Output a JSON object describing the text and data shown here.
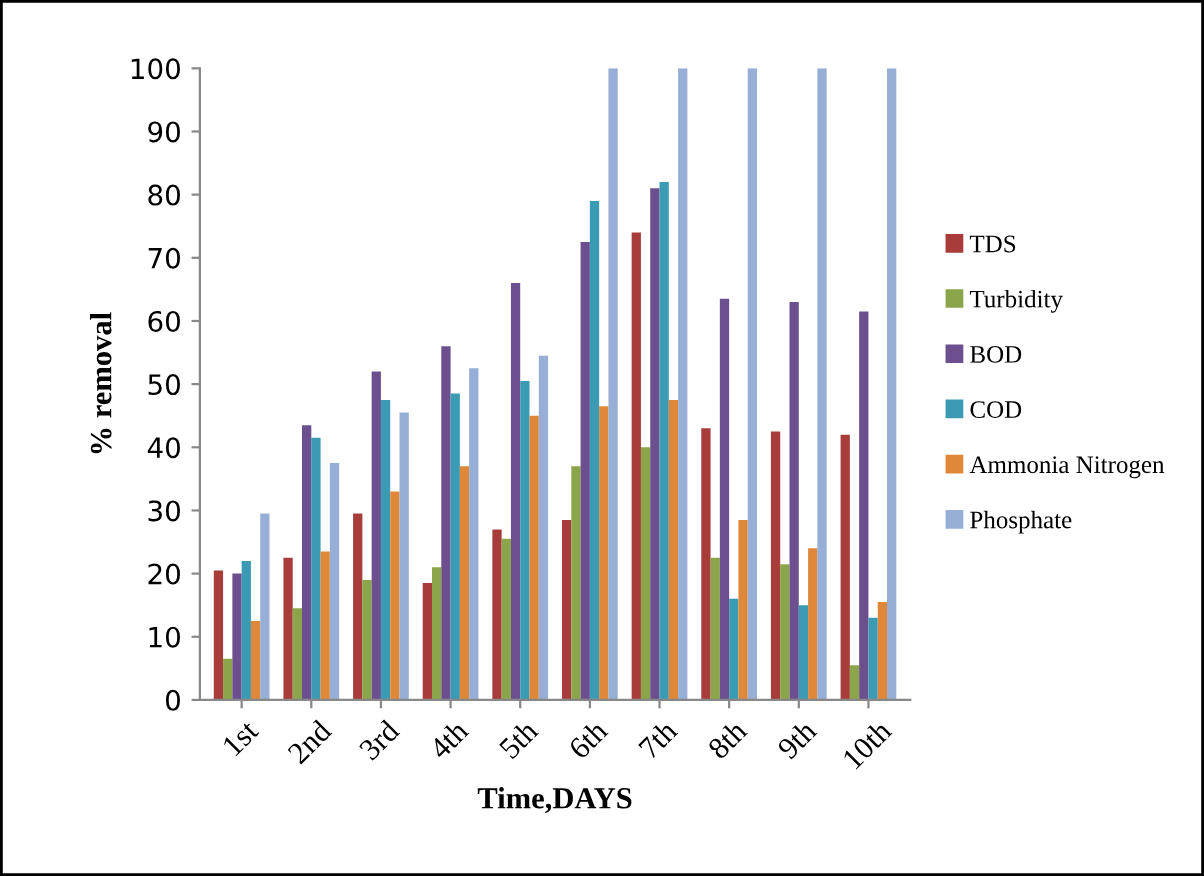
{
  "chart_data": {
    "type": "bar",
    "xlabel": "Time,DAYS",
    "ylabel": "% removal",
    "categories": [
      "1st",
      "2nd",
      "3rd",
      "4th",
      "5th",
      "6th",
      "7th",
      "8th",
      "9th",
      "10th"
    ],
    "series": [
      {
        "name": "TDS",
        "color": "#a83c3a",
        "values": [
          20.5,
          22.5,
          29.5,
          18.5,
          27,
          28.5,
          74,
          43,
          42.5,
          42
        ]
      },
      {
        "name": "Turbidity",
        "color": "#8aa54a",
        "values": [
          6.5,
          14.5,
          19,
          21,
          25.5,
          37,
          40,
          22.5,
          21.5,
          5.5
        ]
      },
      {
        "name": "BOD",
        "color": "#6c4f8e",
        "values": [
          20,
          43.5,
          52,
          56,
          66,
          72.5,
          81,
          63.5,
          63,
          61.5
        ]
      },
      {
        "name": "COD",
        "color": "#3b9ab4",
        "values": [
          22,
          41.5,
          47.5,
          48.5,
          50.5,
          79,
          82,
          16,
          15,
          13
        ]
      },
      {
        "name": "Ammonia Nitrogen",
        "color": "#e0883a",
        "values": [
          12.5,
          23.5,
          33,
          37,
          45,
          46.5,
          47.5,
          28.5,
          24,
          15.5
        ]
      },
      {
        "name": "Phosphate",
        "color": "#97aed6",
        "values": [
          29.5,
          37.5,
          45.5,
          52.5,
          54.5,
          100,
          100,
          100,
          100,
          100
        ]
      }
    ],
    "ylim": [
      0,
      100
    ],
    "yticks": [
      0,
      10,
      20,
      30,
      40,
      50,
      60,
      70,
      80,
      90,
      100
    ],
    "grid": false,
    "legend": "right"
  }
}
